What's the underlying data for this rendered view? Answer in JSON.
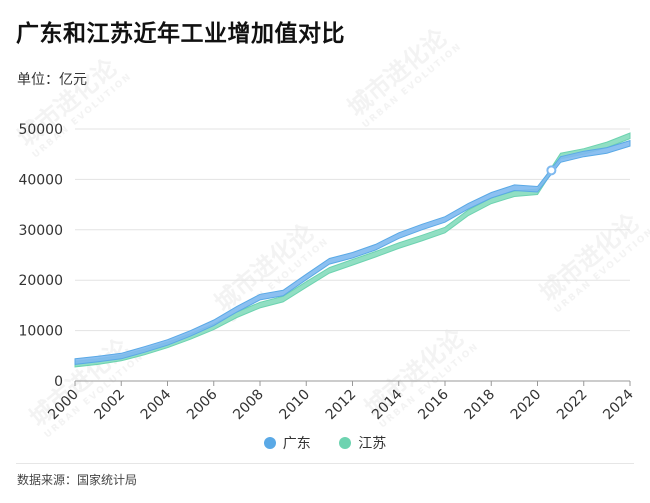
{
  "title": "广东和江苏近年工业增加值对比",
  "unit_label": "单位：亿元",
  "source": "数据来源：国家统计局",
  "watermark": {
    "cn": "城市进化论",
    "en": "URBAN EVOLUTION"
  },
  "colors": {
    "guangdong": "#5aa9e6",
    "jiangsu": "#6dd3b0",
    "band_gd": "#7fb9ef",
    "band_js": "#85dcbd"
  },
  "chart_data": {
    "type": "line",
    "title": "广东和江苏近年工业增加值对比",
    "ylabel": "单位：亿元",
    "xlim": [
      2000,
      2024
    ],
    "ylim": [
      0,
      50000
    ],
    "y_ticks": [
      0,
      10000,
      20000,
      30000,
      40000,
      50000
    ],
    "x_ticks": [
      2000,
      2002,
      2004,
      2006,
      2008,
      2010,
      2012,
      2014,
      2016,
      2018,
      2020,
      2022,
      2024
    ],
    "x": [
      2000,
      2001,
      2002,
      2003,
      2004,
      2005,
      2006,
      2007,
      2008,
      2009,
      2010,
      2011,
      2012,
      2013,
      2014,
      2015,
      2016,
      2017,
      2018,
      2019,
      2020,
      2021,
      2022,
      2023,
      2024
    ],
    "series": [
      {
        "name": "广东",
        "values": [
          4400,
          4900,
          5500,
          6800,
          8200,
          10000,
          12100,
          14800,
          17200,
          18000,
          21200,
          24300,
          25500,
          27100,
          29400,
          31100,
          32600,
          35200,
          37400,
          38900,
          38600,
          44500,
          45600,
          46300,
          47700
        ]
      },
      {
        "name": "江苏",
        "values": [
          3900,
          4400,
          5100,
          6300,
          7700,
          9400,
          11300,
          13700,
          15600,
          16800,
          19700,
          22500,
          24100,
          25700,
          27400,
          28900,
          30500,
          33900,
          36300,
          37700,
          38100,
          45200,
          46100,
          47400,
          49200
        ]
      }
    ],
    "legend": [
      "广东",
      "江苏"
    ],
    "legend_position": "bottom",
    "grid": true
  }
}
